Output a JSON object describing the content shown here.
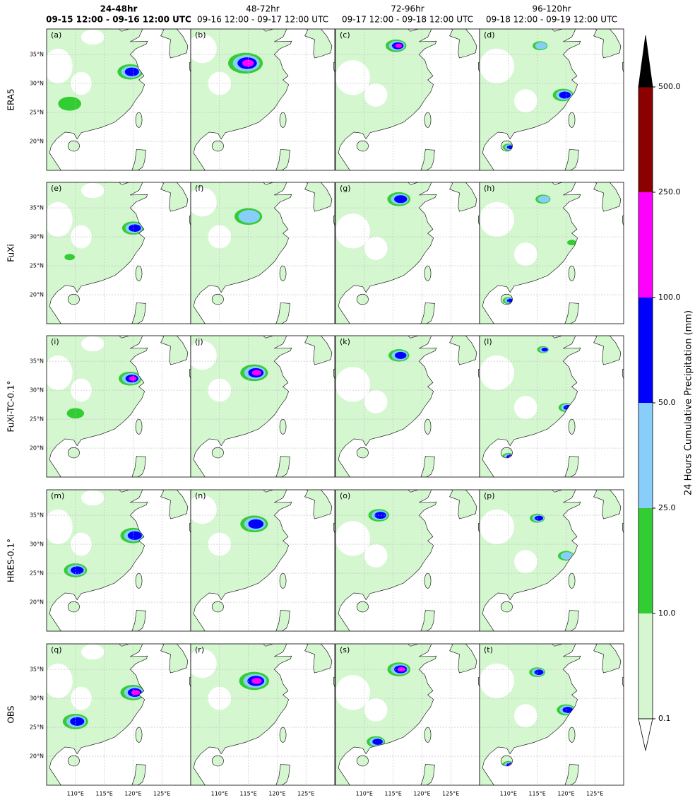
{
  "columns": [
    {
      "title": "24-48hr",
      "subtitle": "09-15 12:00 - 09-16 12:00 UTC"
    },
    {
      "title": "48-72hr",
      "subtitle": "09-16 12:00 - 09-17 12:00 UTC"
    },
    {
      "title": "72-96hr",
      "subtitle": "09-17 12:00 - 09-18 12:00 UTC"
    },
    {
      "title": "96-120hr",
      "subtitle": "09-18 12:00 - 09-19 12:00 UTC"
    }
  ],
  "rows": [
    "ERA5",
    "FuXi",
    "FuXi-TC-0.1°",
    "HRES-0.1°",
    "OBS"
  ],
  "panel_labels": [
    "(a)",
    "(b)",
    "(c)",
    "(d)",
    "(e)",
    "(f)",
    "(g)",
    "(h)",
    "(i)",
    "(j)",
    "(k)",
    "(l)",
    "(m)",
    "(n)",
    "(o)",
    "(p)",
    "(q)",
    "(r)",
    "(s)",
    "(t)"
  ],
  "lat_range": [
    15,
    39.4
  ],
  "lon_range": [
    105,
    130
  ],
  "lat_ticks": [
    {
      "value": 20,
      "label": "20°N"
    },
    {
      "value": 25,
      "label": "25°N"
    },
    {
      "value": 30,
      "label": "30°N"
    },
    {
      "value": 35,
      "label": "35°N"
    }
  ],
  "lon_ticks": [
    {
      "value": 110,
      "label": "110°E"
    },
    {
      "value": 115,
      "label": "115°E"
    },
    {
      "value": 120,
      "label": "120°E"
    },
    {
      "value": 125,
      "label": "125°E"
    }
  ],
  "colorbar": {
    "label": "24 Hours Cumulative Precipitation (mm)",
    "levels": [
      0.1,
      {
        "value": 10,
        "label": "10.0"
      },
      {
        "value": 25,
        "label": "25.0"
      },
      {
        "value": 50,
        "label": "50.0"
      },
      {
        "value": 100,
        "label": "100.0"
      },
      {
        "value": 250,
        "label": "250.0"
      },
      {
        "value": 500,
        "label": "500.0"
      }
    ],
    "colors": [
      "#d4f7d0",
      "#32cd32",
      "#87cefa",
      "#0000ff",
      "#ff00ff",
      "#8b0000"
    ],
    "extend_colors": [
      "#ffffff",
      "#000000"
    ]
  }
}
